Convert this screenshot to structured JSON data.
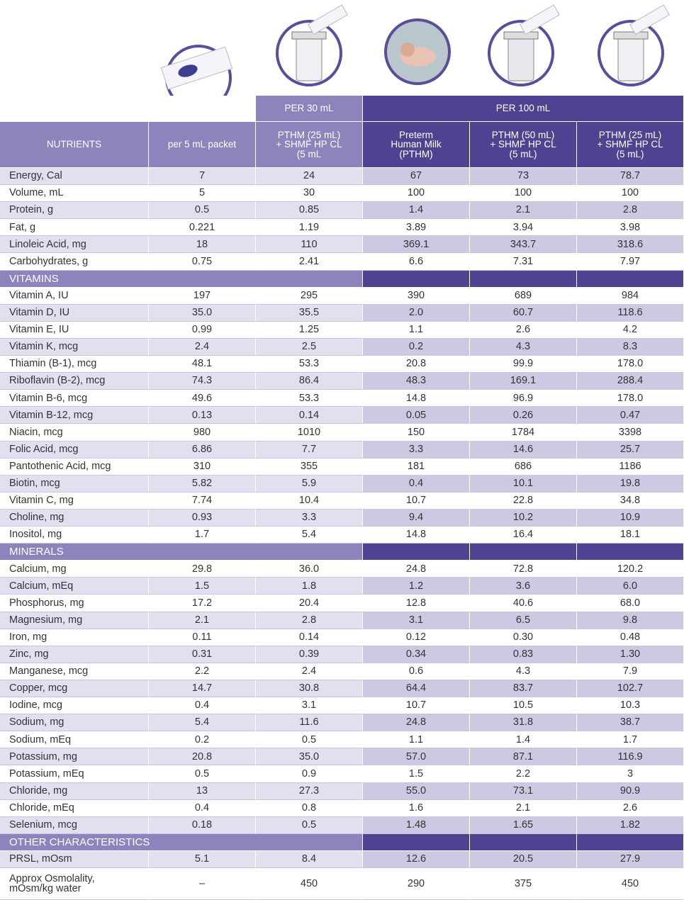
{
  "table": {
    "group_headers": [
      "PER 30 mL",
      "PER 100 mL"
    ],
    "columns": [
      "NUTRIENTS",
      "per 5 mL packet",
      "PTHM (25 mL)\n+ SHMF HP CL\n(5 mL",
      "Preterm\nHuman Milk\n(PTHM)",
      "PTHM (50 mL)\n+ SHMF HP CL\n(5 mL)",
      "PTHM (25 mL)\n+ SHMF HP CL\n(5 mL)"
    ],
    "rows": [
      {
        "label": "Energy, Cal",
        "values": [
          "7",
          "24",
          "67",
          "73",
          "78.7"
        ]
      },
      {
        "label": "Volume, mL",
        "values": [
          "5",
          "30",
          "100",
          "100",
          "100"
        ]
      },
      {
        "label": "Protein, g",
        "values": [
          "0.5",
          "0.85",
          "1.4",
          "2.1",
          "2.8"
        ]
      },
      {
        "label": "Fat, g",
        "values": [
          "0.221",
          "1.19",
          "3.89",
          "3.94",
          "3.98"
        ]
      },
      {
        "label": "Linoleic Acid, mg",
        "values": [
          "18",
          "110",
          "369.1",
          "343.7",
          "318.6"
        ]
      },
      {
        "label": "Carbohydrates, g",
        "values": [
          "0.75",
          "2.41",
          "6.6",
          "7.31",
          "7.97"
        ]
      },
      {
        "section": "VITAMINS"
      },
      {
        "label": "Vitamin A, IU",
        "values": [
          "197",
          "295",
          "390",
          "689",
          "984"
        ]
      },
      {
        "label": "Vitamin D, IU",
        "values": [
          "35.0",
          "35.5",
          "2.0",
          "60.7",
          "118.6"
        ]
      },
      {
        "label": "Vitamin E, IU",
        "values": [
          "0.99",
          "1.25",
          "1.1",
          "2.6",
          "4.2"
        ]
      },
      {
        "label": "Vitamin K, mcg",
        "values": [
          "2.4",
          "2.5",
          "0.2",
          "4.3",
          "8.3"
        ]
      },
      {
        "label": "Thiamin (B-1), mcg",
        "values": [
          "48.1",
          "53.3",
          "20.8",
          "99.9",
          "178.0"
        ]
      },
      {
        "label": "Riboflavin (B-2), mcg",
        "values": [
          "74.3",
          "86.4",
          "48.3",
          "169.1",
          "288.4"
        ]
      },
      {
        "label": "Vitamin B-6, mcg",
        "values": [
          "49.6",
          "53.3",
          "14.8",
          "96.9",
          "178.0"
        ]
      },
      {
        "label": "Vitamin B-12, mcg",
        "values": [
          "0.13",
          "0.14",
          "0.05",
          "0.26",
          "0.47"
        ]
      },
      {
        "label": "Niacin, mcg",
        "values": [
          "980",
          "1010",
          "150",
          "1784",
          "3398"
        ]
      },
      {
        "label": "Folic Acid, mcg",
        "values": [
          "6.86",
          "7.7",
          "3.3",
          "14.6",
          "25.7"
        ]
      },
      {
        "label": "Pantothenic Acid, mcg",
        "values": [
          "310",
          "355",
          "181",
          "686",
          "1186"
        ]
      },
      {
        "label": "Biotin, mcg",
        "values": [
          "5.82",
          "5.9",
          "0.4",
          "10.1",
          "19.8"
        ]
      },
      {
        "label": "Vitamin C, mg",
        "values": [
          "7.74",
          "10.4",
          "10.7",
          "22.8",
          "34.8"
        ]
      },
      {
        "label": "Choline, mg",
        "values": [
          "0.93",
          "3.3",
          "9.4",
          "10.2",
          "10.9"
        ]
      },
      {
        "label": "Inositol, mg",
        "values": [
          "1.7",
          "5.4",
          "14.8",
          "16.4",
          "18.1"
        ]
      },
      {
        "section": "MINERALS"
      },
      {
        "label": "Calcium, mg",
        "values": [
          "29.8",
          "36.0",
          "24.8",
          "72.8",
          "120.2"
        ]
      },
      {
        "label": "Calcium, mEq",
        "values": [
          "1.5",
          "1.8",
          "1.2",
          "3.6",
          "6.0"
        ]
      },
      {
        "label": "Phosphorus, mg",
        "values": [
          "17.2",
          "20.4",
          "12.8",
          "40.6",
          "68.0"
        ]
      },
      {
        "label": "Magnesium, mg",
        "values": [
          "2.1",
          "2.8",
          "3.1",
          "6.5",
          "9.8"
        ]
      },
      {
        "label": "Iron, mg",
        "values": [
          "0.11",
          "0.14",
          "0.12",
          "0.30",
          "0.48"
        ]
      },
      {
        "label": "Zinc, mg",
        "values": [
          "0.31",
          "0.39",
          "0.34",
          "0.83",
          "1.30"
        ]
      },
      {
        "label": "Manganese, mcg",
        "values": [
          "2.2",
          "2.4",
          "0.6",
          "4.3",
          "7.9"
        ]
      },
      {
        "label": "Copper, mcg",
        "values": [
          "14.7",
          "30.8",
          "64.4",
          "83.7",
          "102.7"
        ]
      },
      {
        "label": "Iodine, mcg",
        "values": [
          "0.4",
          "3.1",
          "10.7",
          "10.5",
          "10.3"
        ]
      },
      {
        "label": "Sodium, mg",
        "values": [
          "5.4",
          "11.6",
          "24.8",
          "31.8",
          "38.7"
        ]
      },
      {
        "label": "Sodium, mEq",
        "values": [
          "0.2",
          "0.5",
          "1.1",
          "1.4",
          "1.7"
        ]
      },
      {
        "label": "Potassium, mg",
        "values": [
          "20.8",
          "35.0",
          "57.0",
          "87.1",
          "116.9"
        ]
      },
      {
        "label": "Potassium, mEq",
        "values": [
          "0.5",
          "0.9",
          "1.5",
          "2.2",
          "3"
        ]
      },
      {
        "label": "Chloride, mg",
        "values": [
          "13",
          "27.3",
          "55.0",
          "73.1",
          "90.9"
        ]
      },
      {
        "label": "Chloride, mEq",
        "values": [
          "0.4",
          "0.8",
          "1.6",
          "2.1",
          "2.6"
        ]
      },
      {
        "label": "Selenium, mcg",
        "values": [
          "0.18",
          "0.5",
          "1.48",
          "1.65",
          "1.82"
        ]
      },
      {
        "section": "OTHER   CHARACTERISTICS"
      },
      {
        "label": "PRSL, mOsm",
        "values": [
          "5.1",
          "8.4",
          "12.6",
          "20.5",
          "27.9"
        ]
      },
      {
        "label": "Approx Osmolality,\nmOsm/kg water",
        "values": [
          "–",
          "450",
          "290",
          "375",
          "450"
        ]
      }
    ]
  }
}
